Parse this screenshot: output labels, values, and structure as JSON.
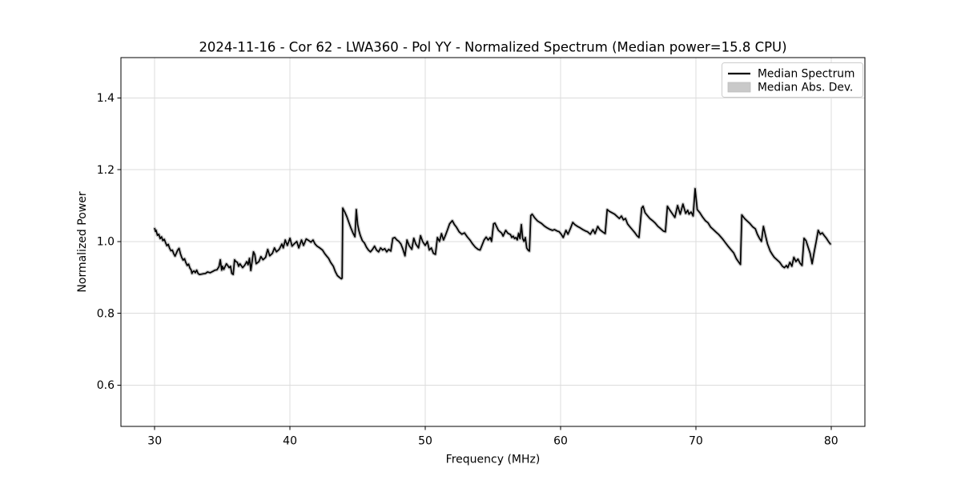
{
  "chart_data": {
    "type": "line",
    "title": "2024-11-16 - Cor 62 - LWA360 - Pol YY - Normalized Spectrum (Median power=15.8 CPU)",
    "xlabel": "Frequency (MHz)",
    "ylabel": "Normalized Power",
    "xlim": [
      27.5,
      82.5
    ],
    "ylim": [
      0.485,
      1.512
    ],
    "xticks": {
      "values": [
        30,
        40,
        50,
        60,
        70,
        80
      ],
      "labels": [
        "30",
        "40",
        "50",
        "60",
        "70",
        "80"
      ]
    },
    "yticks": {
      "values": [
        0.6,
        0.8,
        1.0,
        1.2,
        1.4
      ],
      "labels": [
        "0.6",
        "0.8",
        "1.0",
        "1.2",
        "1.4"
      ]
    },
    "grid": true,
    "legend": {
      "position": "upper right",
      "items": [
        {
          "label": "Median Spectrum",
          "type": "line",
          "color": "#000000"
        },
        {
          "label": "Median Abs. Dev.",
          "type": "patch",
          "color": "#c9c9c9"
        }
      ]
    },
    "series": [
      {
        "name": "Median Spectrum",
        "color": "#000000",
        "x": [
          30.0,
          30.05,
          30.1,
          30.2,
          30.3,
          30.4,
          30.5,
          30.6,
          30.7,
          30.8,
          30.9,
          31.0,
          31.1,
          31.2,
          31.3,
          31.4,
          31.5,
          31.7,
          31.8,
          31.9,
          32.0,
          32.1,
          32.2,
          32.3,
          32.4,
          32.5,
          32.6,
          32.7,
          32.75,
          32.8,
          32.9,
          33.0,
          33.1,
          33.2,
          33.3,
          33.45,
          33.6,
          33.75,
          33.9,
          34.1,
          34.3,
          34.45,
          34.6,
          34.75,
          34.85,
          34.95,
          35.0,
          35.1,
          35.3,
          35.4,
          35.5,
          35.6,
          35.7,
          35.8,
          35.9,
          36.0,
          36.1,
          36.2,
          36.3,
          36.5,
          36.65,
          36.8,
          36.9,
          37.0,
          37.1,
          37.3,
          37.4,
          37.5,
          37.7,
          37.85,
          38.0,
          38.2,
          38.35,
          38.5,
          38.7,
          38.85,
          39.0,
          39.2,
          39.4,
          39.5,
          39.65,
          39.8,
          40.0,
          40.15,
          40.3,
          40.5,
          40.65,
          40.85,
          41.0,
          41.2,
          41.4,
          41.55,
          41.7,
          41.85,
          42.0,
          42.2,
          42.4,
          42.55,
          42.7,
          42.85,
          43.0,
          43.2,
          43.35,
          43.5,
          43.65,
          43.8,
          43.85,
          43.9,
          44.05,
          44.2,
          44.35,
          44.5,
          44.65,
          44.8,
          44.9,
          45.0,
          45.1,
          45.2,
          45.35,
          45.5,
          45.65,
          45.8,
          45.95,
          46.1,
          46.25,
          46.4,
          46.55,
          46.7,
          46.85,
          47.0,
          47.15,
          47.3,
          47.45,
          47.6,
          47.75,
          47.9,
          48.05,
          48.2,
          48.35,
          48.5,
          48.65,
          48.8,
          49.0,
          49.15,
          49.3,
          49.5,
          49.65,
          49.8,
          50.0,
          50.15,
          50.3,
          50.45,
          50.6,
          50.75,
          50.9,
          51.05,
          51.2,
          51.35,
          51.5,
          51.65,
          51.8,
          52.0,
          52.15,
          52.3,
          52.5,
          52.7,
          52.9,
          53.1,
          53.3,
          53.5,
          53.7,
          53.9,
          54.05,
          54.2,
          54.35,
          54.5,
          54.65,
          54.8,
          54.9,
          55.05,
          55.15,
          55.4,
          55.65,
          55.75,
          55.95,
          56.1,
          56.3,
          56.4,
          56.5,
          56.6,
          56.7,
          56.8,
          56.9,
          57.0,
          57.1,
          57.2,
          57.3,
          57.4,
          57.5,
          57.6,
          57.7,
          57.8,
          57.9,
          58.1,
          58.3,
          58.6,
          58.8,
          59.0,
          59.2,
          59.4,
          59.55,
          59.75,
          59.9,
          60.05,
          60.2,
          60.4,
          60.55,
          60.75,
          60.9,
          61.05,
          61.25,
          61.45,
          61.65,
          61.85,
          62.0,
          62.2,
          62.4,
          62.55,
          62.75,
          62.9,
          63.1,
          63.3,
          63.45,
          63.6,
          63.8,
          64.0,
          64.2,
          64.35,
          64.5,
          64.65,
          64.8,
          64.95,
          65.1,
          65.3,
          65.5,
          65.65,
          65.8,
          66.0,
          66.1,
          66.25,
          66.4,
          66.6,
          66.8,
          67.0,
          67.2,
          67.4,
          67.6,
          67.75,
          67.9,
          68.05,
          68.25,
          68.45,
          68.65,
          68.85,
          69.05,
          69.25,
          69.4,
          69.5,
          69.65,
          69.8,
          69.95,
          70.1,
          70.3,
          70.5,
          70.7,
          70.9,
          71.1,
          71.3,
          71.5,
          71.7,
          72.0,
          72.2,
          72.4,
          72.6,
          72.8,
          73.0,
          73.2,
          73.3,
          73.4,
          73.6,
          73.8,
          74.0,
          74.2,
          74.4,
          74.55,
          74.7,
          74.85,
          75.0,
          75.15,
          75.3,
          75.5,
          75.65,
          75.8,
          76.0,
          76.2,
          76.4,
          76.55,
          76.7,
          76.8,
          76.95,
          77.1,
          77.25,
          77.4,
          77.55,
          77.7,
          77.85,
          78.0,
          78.15,
          78.3,
          78.45,
          78.6,
          78.75,
          78.9,
          79.05,
          79.2,
          79.35,
          79.5,
          79.65,
          79.8,
          79.95
        ],
        "y": [
          1.036,
          1.028,
          1.031,
          1.017,
          1.02,
          1.008,
          1.013,
          1.002,
          1.006,
          0.997,
          0.988,
          0.992,
          0.981,
          0.974,
          0.976,
          0.966,
          0.959,
          0.976,
          0.981,
          0.966,
          0.955,
          0.948,
          0.952,
          0.941,
          0.933,
          0.937,
          0.926,
          0.92,
          0.911,
          0.915,
          0.918,
          0.913,
          0.92,
          0.911,
          0.908,
          0.909,
          0.91,
          0.911,
          0.915,
          0.913,
          0.917,
          0.92,
          0.921,
          0.93,
          0.949,
          0.92,
          0.931,
          0.922,
          0.938,
          0.933,
          0.927,
          0.931,
          0.911,
          0.908,
          0.949,
          0.944,
          0.942,
          0.931,
          0.938,
          0.927,
          0.934,
          0.944,
          0.935,
          0.953,
          0.919,
          0.971,
          0.963,
          0.938,
          0.944,
          0.958,
          0.949,
          0.956,
          0.978,
          0.96,
          0.967,
          0.982,
          0.971,
          0.978,
          0.993,
          0.982,
          1.004,
          0.989,
          1.009,
          0.987,
          0.993,
          1.0,
          0.982,
          1.004,
          0.989,
          1.007,
          1.002,
          0.998,
          1.004,
          0.993,
          0.987,
          0.982,
          0.976,
          0.967,
          0.96,
          0.953,
          0.942,
          0.931,
          0.916,
          0.905,
          0.9,
          0.896,
          0.898,
          1.093,
          1.082,
          1.069,
          1.053,
          1.038,
          1.024,
          1.013,
          1.089,
          1.047,
          1.029,
          1.016,
          1.002,
          0.996,
          0.984,
          0.976,
          0.971,
          0.978,
          0.987,
          0.976,
          0.971,
          0.982,
          0.976,
          0.98,
          0.971,
          0.978,
          0.973,
          1.009,
          1.011,
          1.004,
          1.0,
          0.993,
          0.978,
          0.96,
          1.004,
          0.989,
          0.978,
          1.009,
          0.993,
          0.982,
          1.016,
          1.0,
          0.989,
          1.0,
          0.976,
          0.982,
          0.967,
          0.964,
          1.011,
          1.0,
          1.022,
          1.004,
          1.018,
          1.033,
          1.049,
          1.058,
          1.047,
          1.04,
          1.027,
          1.02,
          1.024,
          1.013,
          1.004,
          0.993,
          0.984,
          0.978,
          0.976,
          0.99,
          1.004,
          1.012,
          1.004,
          1.011,
          1.0,
          1.049,
          1.051,
          1.031,
          1.023,
          1.015,
          1.031,
          1.023,
          1.019,
          1.011,
          1.015,
          1.008,
          1.011,
          1.004,
          1.023,
          1.008,
          1.047,
          1.008,
          1.0,
          1.011,
          0.982,
          0.976,
          0.973,
          1.072,
          1.076,
          1.065,
          1.057,
          1.05,
          1.043,
          1.038,
          1.034,
          1.031,
          1.033,
          1.029,
          1.027,
          1.02,
          1.011,
          1.031,
          1.02,
          1.038,
          1.053,
          1.047,
          1.042,
          1.038,
          1.033,
          1.029,
          1.027,
          1.02,
          1.033,
          1.022,
          1.042,
          1.033,
          1.027,
          1.022,
          1.089,
          1.084,
          1.08,
          1.076,
          1.069,
          1.064,
          1.071,
          1.06,
          1.064,
          1.049,
          1.042,
          1.033,
          1.024,
          1.016,
          1.011,
          1.093,
          1.098,
          1.08,
          1.073,
          1.064,
          1.058,
          1.051,
          1.042,
          1.036,
          1.029,
          1.027,
          1.098,
          1.089,
          1.078,
          1.067,
          1.1,
          1.076,
          1.104,
          1.078,
          1.087,
          1.076,
          1.082,
          1.071,
          1.147,
          1.089,
          1.08,
          1.068,
          1.058,
          1.052,
          1.04,
          1.033,
          1.026,
          1.019,
          1.006,
          0.996,
          0.986,
          0.977,
          0.968,
          0.952,
          0.941,
          0.936,
          1.074,
          1.064,
          1.057,
          1.05,
          1.041,
          1.035,
          1.02,
          1.009,
          1.0,
          1.042,
          1.016,
          0.993,
          0.973,
          0.964,
          0.956,
          0.949,
          0.942,
          0.931,
          0.927,
          0.933,
          0.927,
          0.942,
          0.931,
          0.956,
          0.944,
          0.951,
          0.94,
          0.933,
          1.009,
          1.002,
          0.984,
          0.967,
          0.938,
          0.971,
          1.0,
          1.031,
          1.02,
          1.024,
          1.016,
          1.009,
          1.0,
          0.993
        ]
      }
    ],
    "band": {
      "name": "Median Abs. Dev.",
      "color": "#c9c9c9",
      "follows_series": "Median Spectrum"
    }
  },
  "colors": {
    "background": "#ffffff",
    "grid": "#dcdcdc",
    "spine": "#000000",
    "line": "#000000",
    "band": "#c9c9c9",
    "legend_border": "#cccccc",
    "text": "#000000"
  }
}
